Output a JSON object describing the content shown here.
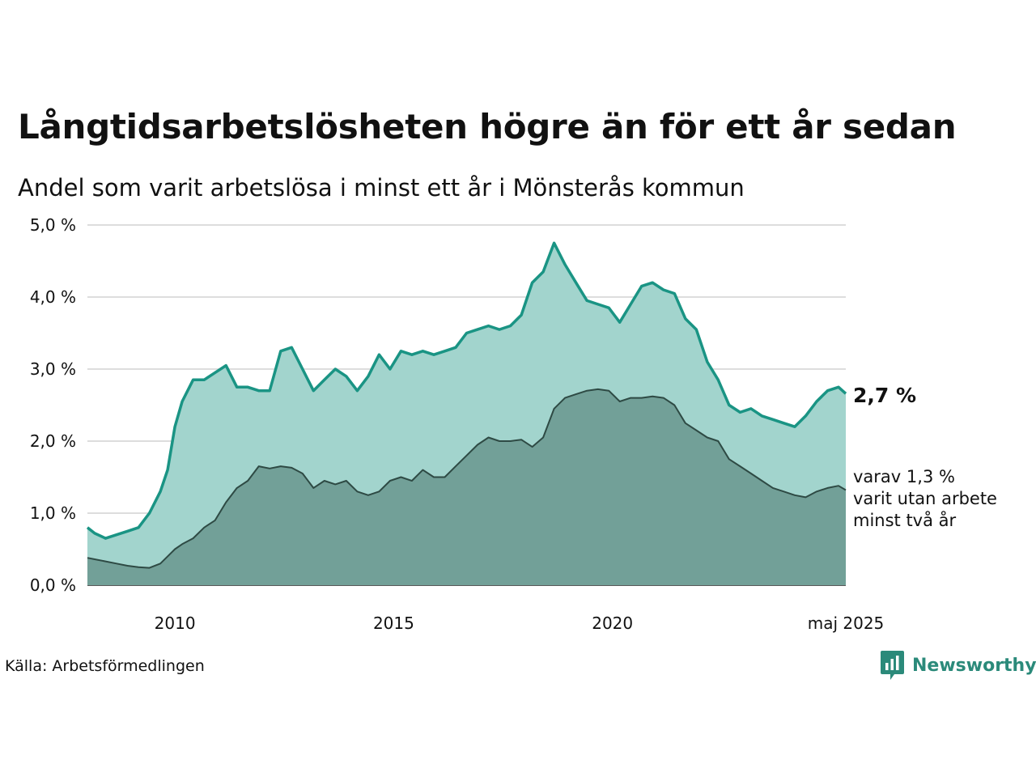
{
  "header": {
    "title": "Långtidsarbetslösheten högre än för ett år sedan",
    "subtitle": "Andel som varit arbetslösa i minst ett år i Mönsterås kommun"
  },
  "labels": {
    "last_value": "2,7 %",
    "sub_line1": "varav 1,3 %",
    "sub_line2": "varit utan arbete",
    "sub_line3": "minst två år"
  },
  "footer": {
    "source": "Källa: Arbetsförmedlingen",
    "brand": "Newsworthy",
    "brand_icon": "newsworthy-logo-icon"
  },
  "colors": {
    "primary_line": "#1a9484",
    "primary_fill": "#a2d4cd",
    "secondary_line": "#2e4a44",
    "secondary_fill": "#72a098",
    "grid": "#dddddd",
    "brand": "#2b8a7a"
  },
  "chart_data": {
    "type": "area",
    "x_start": "2008-01",
    "x_end": "2025-05",
    "x_ticks": [
      {
        "x": "2010-01",
        "label": "2010"
      },
      {
        "x": "2015-01",
        "label": "2015"
      },
      {
        "x": "2020-01",
        "label": "2020"
      },
      {
        "x": "2025-05",
        "label": "maj 2025"
      }
    ],
    "y_ticks": [
      {
        "v": 0,
        "label": "0,0 %"
      },
      {
        "v": 1,
        "label": "1,0 %"
      },
      {
        "v": 2,
        "label": "2,0 %"
      },
      {
        "v": 3,
        "label": "3,0 %"
      },
      {
        "v": 4,
        "label": "4,0 %"
      },
      {
        "v": 5,
        "label": "5,0 %"
      }
    ],
    "ylim": [
      0,
      5
    ],
    "grid": true,
    "series": [
      {
        "key": "one_year",
        "points": [
          [
            "2008-01",
            0.8
          ],
          [
            "2008-03",
            0.72
          ],
          [
            "2008-06",
            0.65
          ],
          [
            "2008-09",
            0.7
          ],
          [
            "2008-12",
            0.75
          ],
          [
            "2009-03",
            0.8
          ],
          [
            "2009-06",
            1.0
          ],
          [
            "2009-09",
            1.3
          ],
          [
            "2009-11",
            1.6
          ],
          [
            "2010-01",
            2.2
          ],
          [
            "2010-03",
            2.55
          ],
          [
            "2010-06",
            2.85
          ],
          [
            "2010-09",
            2.85
          ],
          [
            "2010-12",
            2.95
          ],
          [
            "2011-03",
            3.05
          ],
          [
            "2011-06",
            2.75
          ],
          [
            "2011-09",
            2.75
          ],
          [
            "2011-12",
            2.7
          ],
          [
            "2012-03",
            2.7
          ],
          [
            "2012-06",
            3.25
          ],
          [
            "2012-09",
            3.3
          ],
          [
            "2012-12",
            3.0
          ],
          [
            "2013-03",
            2.7
          ],
          [
            "2013-06",
            2.85
          ],
          [
            "2013-09",
            3.0
          ],
          [
            "2013-12",
            2.9
          ],
          [
            "2014-03",
            2.7
          ],
          [
            "2014-06",
            2.9
          ],
          [
            "2014-09",
            3.2
          ],
          [
            "2014-12",
            3.0
          ],
          [
            "2015-03",
            3.25
          ],
          [
            "2015-06",
            3.2
          ],
          [
            "2015-09",
            3.25
          ],
          [
            "2015-12",
            3.2
          ],
          [
            "2016-03",
            3.25
          ],
          [
            "2016-06",
            3.3
          ],
          [
            "2016-09",
            3.5
          ],
          [
            "2016-12",
            3.55
          ],
          [
            "2017-03",
            3.6
          ],
          [
            "2017-06",
            3.55
          ],
          [
            "2017-09",
            3.6
          ],
          [
            "2017-12",
            3.75
          ],
          [
            "2018-03",
            4.2
          ],
          [
            "2018-06",
            4.35
          ],
          [
            "2018-09",
            4.75
          ],
          [
            "2018-12",
            4.45
          ],
          [
            "2019-03",
            4.2
          ],
          [
            "2019-06",
            3.95
          ],
          [
            "2019-09",
            3.9
          ],
          [
            "2019-12",
            3.85
          ],
          [
            "2020-03",
            3.65
          ],
          [
            "2020-06",
            3.9
          ],
          [
            "2020-09",
            4.15
          ],
          [
            "2020-12",
            4.2
          ],
          [
            "2021-03",
            4.1
          ],
          [
            "2021-06",
            4.05
          ],
          [
            "2021-09",
            3.7
          ],
          [
            "2021-12",
            3.55
          ],
          [
            "2022-03",
            3.1
          ],
          [
            "2022-06",
            2.85
          ],
          [
            "2022-09",
            2.5
          ],
          [
            "2022-12",
            2.4
          ],
          [
            "2023-03",
            2.45
          ],
          [
            "2023-06",
            2.35
          ],
          [
            "2023-09",
            2.3
          ],
          [
            "2023-12",
            2.25
          ],
          [
            "2024-03",
            2.2
          ],
          [
            "2024-06",
            2.35
          ],
          [
            "2024-09",
            2.55
          ],
          [
            "2024-12",
            2.7
          ],
          [
            "2025-03",
            2.75
          ],
          [
            "2025-05",
            2.66
          ]
        ]
      },
      {
        "key": "two_years",
        "points": [
          [
            "2008-01",
            0.38
          ],
          [
            "2008-03",
            0.36
          ],
          [
            "2008-06",
            0.33
          ],
          [
            "2008-09",
            0.3
          ],
          [
            "2008-12",
            0.27
          ],
          [
            "2009-03",
            0.25
          ],
          [
            "2009-06",
            0.24
          ],
          [
            "2009-09",
            0.3
          ],
          [
            "2009-11",
            0.4
          ],
          [
            "2010-01",
            0.5
          ],
          [
            "2010-03",
            0.57
          ],
          [
            "2010-06",
            0.65
          ],
          [
            "2010-09",
            0.8
          ],
          [
            "2010-12",
            0.9
          ],
          [
            "2011-03",
            1.15
          ],
          [
            "2011-06",
            1.35
          ],
          [
            "2011-09",
            1.45
          ],
          [
            "2011-12",
            1.65
          ],
          [
            "2012-03",
            1.62
          ],
          [
            "2012-06",
            1.65
          ],
          [
            "2012-09",
            1.63
          ],
          [
            "2012-12",
            1.55
          ],
          [
            "2013-03",
            1.35
          ],
          [
            "2013-06",
            1.45
          ],
          [
            "2013-09",
            1.4
          ],
          [
            "2013-12",
            1.45
          ],
          [
            "2014-03",
            1.3
          ],
          [
            "2014-06",
            1.25
          ],
          [
            "2014-09",
            1.3
          ],
          [
            "2014-12",
            1.45
          ],
          [
            "2015-03",
            1.5
          ],
          [
            "2015-06",
            1.45
          ],
          [
            "2015-09",
            1.6
          ],
          [
            "2015-12",
            1.5
          ],
          [
            "2016-03",
            1.5
          ],
          [
            "2016-06",
            1.65
          ],
          [
            "2016-09",
            1.8
          ],
          [
            "2016-12",
            1.95
          ],
          [
            "2017-03",
            2.05
          ],
          [
            "2017-06",
            2.0
          ],
          [
            "2017-09",
            2.0
          ],
          [
            "2017-12",
            2.02
          ],
          [
            "2018-03",
            1.92
          ],
          [
            "2018-06",
            2.05
          ],
          [
            "2018-09",
            2.45
          ],
          [
            "2018-12",
            2.6
          ],
          [
            "2019-03",
            2.65
          ],
          [
            "2019-06",
            2.7
          ],
          [
            "2019-09",
            2.72
          ],
          [
            "2019-12",
            2.7
          ],
          [
            "2020-03",
            2.55
          ],
          [
            "2020-06",
            2.6
          ],
          [
            "2020-09",
            2.6
          ],
          [
            "2020-12",
            2.62
          ],
          [
            "2021-03",
            2.6
          ],
          [
            "2021-06",
            2.5
          ],
          [
            "2021-09",
            2.25
          ],
          [
            "2021-12",
            2.15
          ],
          [
            "2022-03",
            2.05
          ],
          [
            "2022-06",
            2.0
          ],
          [
            "2022-09",
            1.75
          ],
          [
            "2022-12",
            1.65
          ],
          [
            "2023-03",
            1.55
          ],
          [
            "2023-06",
            1.45
          ],
          [
            "2023-09",
            1.35
          ],
          [
            "2023-12",
            1.3
          ],
          [
            "2024-03",
            1.25
          ],
          [
            "2024-06",
            1.22
          ],
          [
            "2024-09",
            1.3
          ],
          [
            "2024-12",
            1.35
          ],
          [
            "2025-03",
            1.38
          ],
          [
            "2025-05",
            1.32
          ]
        ]
      }
    ]
  }
}
